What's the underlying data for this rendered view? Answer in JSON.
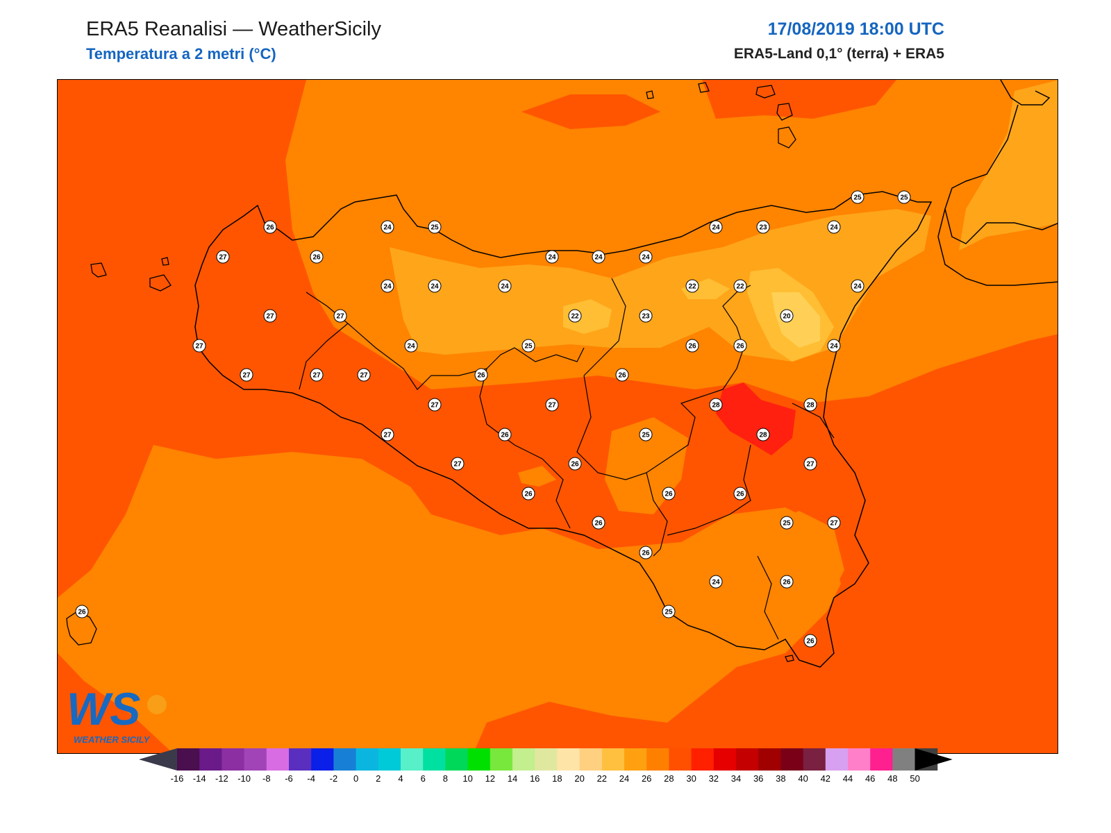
{
  "header": {
    "title": "ERA5 Reanalisi — WeatherSicily",
    "subtitle": "Temperatura a 2 metri (°C)",
    "datetime": "17/08/2019 18:00 UTC",
    "source": "ERA5-Land 0,1° (terra) + ERA5"
  },
  "logo": {
    "text": "WS",
    "subtext": "WEATHER SICILY"
  },
  "colorbar": {
    "labels": [
      "-16",
      "-14",
      "-12",
      "-10",
      "-8",
      "-6",
      "-4",
      "-2",
      "0",
      "2",
      "4",
      "6",
      "8",
      "10",
      "12",
      "14",
      "16",
      "18",
      "20",
      "22",
      "24",
      "26",
      "28",
      "30",
      "32",
      "34",
      "36",
      "38",
      "40",
      "42",
      "44",
      "46",
      "48",
      "50"
    ],
    "colors": [
      "#4a0f4e",
      "#6b1a8a",
      "#8b2fa3",
      "#a044b8",
      "#d86ce3",
      "#5a2fc0",
      "#0a1fe8",
      "#1780d6",
      "#0ab6e0",
      "#00c9d8",
      "#57f0c8",
      "#00e0a0",
      "#00d85a",
      "#00e000",
      "#79e83c",
      "#c3ef8e",
      "#e0e8a0",
      "#ffe4a8",
      "#ffd080",
      "#ffc040",
      "#ffa010",
      "#ff8000",
      "#ff5000",
      "#ff2000",
      "#e60000",
      "#c40000",
      "#a00000",
      "#7a0018",
      "#7a2040",
      "#d8a0f0",
      "#ff80c8",
      "#ff2090",
      "#808080",
      "#404040"
    ]
  },
  "map_colors": {
    "t20": "#ffd055",
    "t22": "#ffbe33",
    "t24": "#ffa51a",
    "t26": "#ff8400",
    "t28": "#ff5500",
    "t30": "#ff2010"
  },
  "stations": [
    {
      "v": "26"
    },
    {
      "v": "24"
    },
    {
      "v": "25"
    },
    {
      "v": "24"
    },
    {
      "v": "23"
    },
    {
      "v": "24"
    },
    {
      "v": "25"
    },
    {
      "v": "25"
    },
    {
      "v": "27"
    },
    {
      "v": "26"
    },
    {
      "v": "24"
    },
    {
      "v": "24"
    },
    {
      "v": "24"
    },
    {
      "v": "24"
    },
    {
      "v": "24"
    },
    {
      "v": "24"
    },
    {
      "v": "22"
    },
    {
      "v": "22"
    },
    {
      "v": "24"
    },
    {
      "v": "27"
    },
    {
      "v": "27"
    },
    {
      "v": "22"
    },
    {
      "v": "23"
    },
    {
      "v": "20"
    },
    {
      "v": "27"
    },
    {
      "v": "24"
    },
    {
      "v": "25"
    },
    {
      "v": "26"
    },
    {
      "v": "26"
    },
    {
      "v": "24"
    },
    {
      "v": "27"
    },
    {
      "v": "27"
    },
    {
      "v": "27"
    },
    {
      "v": "26"
    },
    {
      "v": "26"
    },
    {
      "v": "27"
    },
    {
      "v": "27"
    },
    {
      "v": "28"
    },
    {
      "v": "28"
    },
    {
      "v": "27"
    },
    {
      "v": "26"
    },
    {
      "v": "25"
    },
    {
      "v": "28"
    },
    {
      "v": "27"
    },
    {
      "v": "26"
    },
    {
      "v": "27"
    },
    {
      "v": "26"
    },
    {
      "v": "26"
    },
    {
      "v": "26"
    },
    {
      "v": "26"
    },
    {
      "v": "25"
    },
    {
      "v": "27"
    },
    {
      "v": "26"
    },
    {
      "v": "24"
    },
    {
      "v": "26"
    },
    {
      "v": "25"
    },
    {
      "v": "26"
    },
    {
      "v": "26"
    }
  ]
}
